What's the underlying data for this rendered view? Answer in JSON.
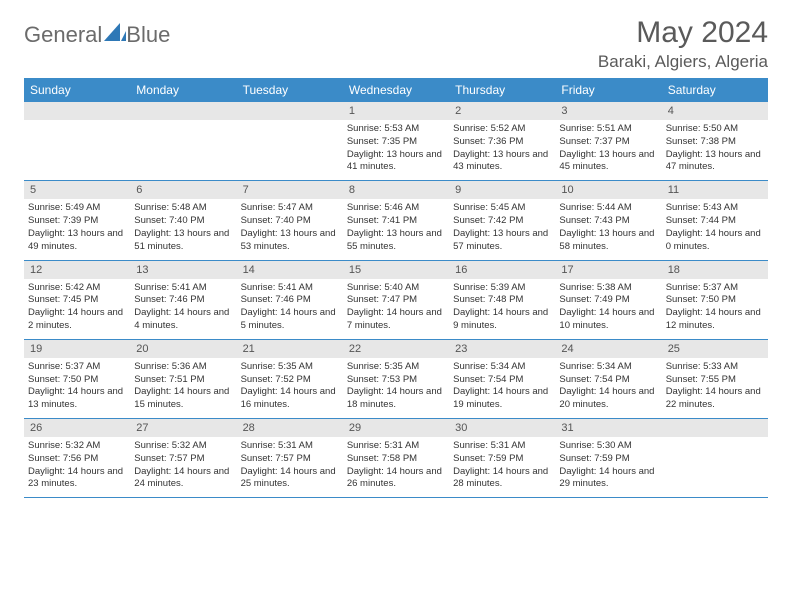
{
  "brand": {
    "name_part1": "General",
    "name_part2": "Blue"
  },
  "colors": {
    "accent": "#3b8bc8",
    "daynum_bg": "#e7e7e7",
    "text": "#333333",
    "muted": "#5a5a5a",
    "logo_gray": "#6b6b6b"
  },
  "title": "May 2024",
  "location": "Baraki, Algiers, Algeria",
  "day_headers": [
    "Sunday",
    "Monday",
    "Tuesday",
    "Wednesday",
    "Thursday",
    "Friday",
    "Saturday"
  ],
  "weeks": [
    [
      {
        "n": "",
        "sr": "",
        "ss": "",
        "dl": ""
      },
      {
        "n": "",
        "sr": "",
        "ss": "",
        "dl": ""
      },
      {
        "n": "",
        "sr": "",
        "ss": "",
        "dl": ""
      },
      {
        "n": "1",
        "sr": "5:53 AM",
        "ss": "7:35 PM",
        "dl": "13 hours and 41 minutes."
      },
      {
        "n": "2",
        "sr": "5:52 AM",
        "ss": "7:36 PM",
        "dl": "13 hours and 43 minutes."
      },
      {
        "n": "3",
        "sr": "5:51 AM",
        "ss": "7:37 PM",
        "dl": "13 hours and 45 minutes."
      },
      {
        "n": "4",
        "sr": "5:50 AM",
        "ss": "7:38 PM",
        "dl": "13 hours and 47 minutes."
      }
    ],
    [
      {
        "n": "5",
        "sr": "5:49 AM",
        "ss": "7:39 PM",
        "dl": "13 hours and 49 minutes."
      },
      {
        "n": "6",
        "sr": "5:48 AM",
        "ss": "7:40 PM",
        "dl": "13 hours and 51 minutes."
      },
      {
        "n": "7",
        "sr": "5:47 AM",
        "ss": "7:40 PM",
        "dl": "13 hours and 53 minutes."
      },
      {
        "n": "8",
        "sr": "5:46 AM",
        "ss": "7:41 PM",
        "dl": "13 hours and 55 minutes."
      },
      {
        "n": "9",
        "sr": "5:45 AM",
        "ss": "7:42 PM",
        "dl": "13 hours and 57 minutes."
      },
      {
        "n": "10",
        "sr": "5:44 AM",
        "ss": "7:43 PM",
        "dl": "13 hours and 58 minutes."
      },
      {
        "n": "11",
        "sr": "5:43 AM",
        "ss": "7:44 PM",
        "dl": "14 hours and 0 minutes."
      }
    ],
    [
      {
        "n": "12",
        "sr": "5:42 AM",
        "ss": "7:45 PM",
        "dl": "14 hours and 2 minutes."
      },
      {
        "n": "13",
        "sr": "5:41 AM",
        "ss": "7:46 PM",
        "dl": "14 hours and 4 minutes."
      },
      {
        "n": "14",
        "sr": "5:41 AM",
        "ss": "7:46 PM",
        "dl": "14 hours and 5 minutes."
      },
      {
        "n": "15",
        "sr": "5:40 AM",
        "ss": "7:47 PM",
        "dl": "14 hours and 7 minutes."
      },
      {
        "n": "16",
        "sr": "5:39 AM",
        "ss": "7:48 PM",
        "dl": "14 hours and 9 minutes."
      },
      {
        "n": "17",
        "sr": "5:38 AM",
        "ss": "7:49 PM",
        "dl": "14 hours and 10 minutes."
      },
      {
        "n": "18",
        "sr": "5:37 AM",
        "ss": "7:50 PM",
        "dl": "14 hours and 12 minutes."
      }
    ],
    [
      {
        "n": "19",
        "sr": "5:37 AM",
        "ss": "7:50 PM",
        "dl": "14 hours and 13 minutes."
      },
      {
        "n": "20",
        "sr": "5:36 AM",
        "ss": "7:51 PM",
        "dl": "14 hours and 15 minutes."
      },
      {
        "n": "21",
        "sr": "5:35 AM",
        "ss": "7:52 PM",
        "dl": "14 hours and 16 minutes."
      },
      {
        "n": "22",
        "sr": "5:35 AM",
        "ss": "7:53 PM",
        "dl": "14 hours and 18 minutes."
      },
      {
        "n": "23",
        "sr": "5:34 AM",
        "ss": "7:54 PM",
        "dl": "14 hours and 19 minutes."
      },
      {
        "n": "24",
        "sr": "5:34 AM",
        "ss": "7:54 PM",
        "dl": "14 hours and 20 minutes."
      },
      {
        "n": "25",
        "sr": "5:33 AM",
        "ss": "7:55 PM",
        "dl": "14 hours and 22 minutes."
      }
    ],
    [
      {
        "n": "26",
        "sr": "5:32 AM",
        "ss": "7:56 PM",
        "dl": "14 hours and 23 minutes."
      },
      {
        "n": "27",
        "sr": "5:32 AM",
        "ss": "7:57 PM",
        "dl": "14 hours and 24 minutes."
      },
      {
        "n": "28",
        "sr": "5:31 AM",
        "ss": "7:57 PM",
        "dl": "14 hours and 25 minutes."
      },
      {
        "n": "29",
        "sr": "5:31 AM",
        "ss": "7:58 PM",
        "dl": "14 hours and 26 minutes."
      },
      {
        "n": "30",
        "sr": "5:31 AM",
        "ss": "7:59 PM",
        "dl": "14 hours and 28 minutes."
      },
      {
        "n": "31",
        "sr": "5:30 AM",
        "ss": "7:59 PM",
        "dl": "14 hours and 29 minutes."
      },
      {
        "n": "",
        "sr": "",
        "ss": "",
        "dl": ""
      }
    ]
  ],
  "labels": {
    "sunrise": "Sunrise: ",
    "sunset": "Sunset: ",
    "daylight": "Daylight: "
  }
}
